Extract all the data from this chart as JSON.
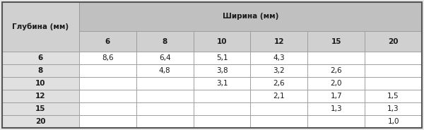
{
  "title_col": "Глубина (мм)",
  "title_row": "Ширина (мм)",
  "col_headers": [
    "6",
    "8",
    "10",
    "12",
    "15",
    "20"
  ],
  "row_headers": [
    "6",
    "8",
    "10",
    "12",
    "15",
    "20"
  ],
  "table_data": [
    [
      "8,6",
      "6,4",
      "5,1",
      "4,3",
      "",
      ""
    ],
    [
      "",
      "4,8",
      "3,8",
      "3,2",
      "2,6",
      ""
    ],
    [
      "",
      "",
      "3,1",
      "2,6",
      "2,0",
      ""
    ],
    [
      "",
      "",
      "",
      "2,1",
      "1,7",
      "1,5"
    ],
    [
      "",
      "",
      "",
      "",
      "1,3",
      "1,3"
    ],
    [
      "",
      "",
      "",
      "",
      "",
      "1,0"
    ]
  ],
  "header_bg": "#c0c0c0",
  "subheader_bg": "#d0d0d0",
  "row_header_bg": "#e0e0e0",
  "data_bg": "#f5f5f5",
  "border_color": "#999999",
  "text_color": "#1a1a1a",
  "font_size": 7.5,
  "fig_bg": "#e8e8e8"
}
